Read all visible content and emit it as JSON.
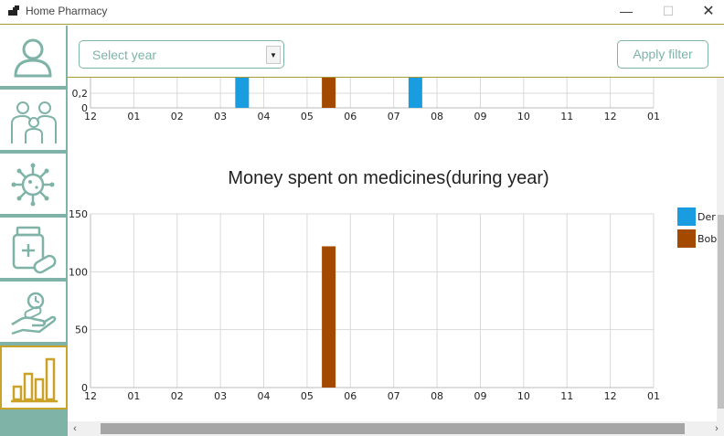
{
  "window": {
    "title": "Home Pharmacy",
    "controls": {
      "minimize": "—",
      "maximize": "☐",
      "close": "✕"
    }
  },
  "sidebar": {
    "items": [
      {
        "icon": "user-icon",
        "active": false
      },
      {
        "icon": "family-icon",
        "active": false
      },
      {
        "icon": "virus-icon",
        "active": false
      },
      {
        "icon": "medicine-icon",
        "active": false
      },
      {
        "icon": "dosage-schedule-icon",
        "active": false
      },
      {
        "icon": "statistics-icon",
        "active": true
      }
    ]
  },
  "filter": {
    "year_placeholder": "Select year",
    "apply_label": "Apply filter"
  },
  "colors": {
    "accent": "#7fb3a8",
    "gold": "#c9a227",
    "series_der": "#1a9de0",
    "series_bob": "#a44a00"
  },
  "chart_data": [
    {
      "type": "bar",
      "title": "",
      "categories": [
        "12",
        "01",
        "02",
        "03",
        "04",
        "05",
        "06",
        "07",
        "08",
        "09",
        "10",
        "11",
        "12",
        "01"
      ],
      "series": [
        {
          "name": "Der",
          "values": [
            0,
            0,
            0,
            1,
            0,
            0,
            0,
            1,
            0,
            0,
            0,
            0,
            0,
            0
          ]
        },
        {
          "name": "Bob",
          "values": [
            0,
            0,
            0,
            0,
            0,
            1,
            0,
            0,
            0,
            0,
            0,
            0,
            0,
            0
          ]
        }
      ],
      "visible_y_ticks": [
        "0,2",
        "0"
      ],
      "partially_scrolled": true,
      "grid": true
    },
    {
      "type": "bar",
      "title": "Money spent on medicines(during year)",
      "categories": [
        "12",
        "01",
        "02",
        "03",
        "04",
        "05",
        "06",
        "07",
        "08",
        "09",
        "10",
        "11",
        "12",
        "01"
      ],
      "series": [
        {
          "name": "Der",
          "values": [
            0,
            0,
            0,
            0,
            0,
            0,
            0,
            0,
            0,
            0,
            0,
            0,
            0,
            0
          ]
        },
        {
          "name": "Bob",
          "values": [
            0,
            0,
            0,
            0,
            0,
            122,
            0,
            0,
            0,
            0,
            0,
            0,
            0,
            0
          ]
        }
      ],
      "ylim": [
        0,
        150
      ],
      "y_ticks": [
        "0",
        "50",
        "100",
        "150"
      ],
      "legend": {
        "position": "right",
        "entries": [
          "Der",
          "Bob"
        ]
      },
      "grid": true
    }
  ]
}
